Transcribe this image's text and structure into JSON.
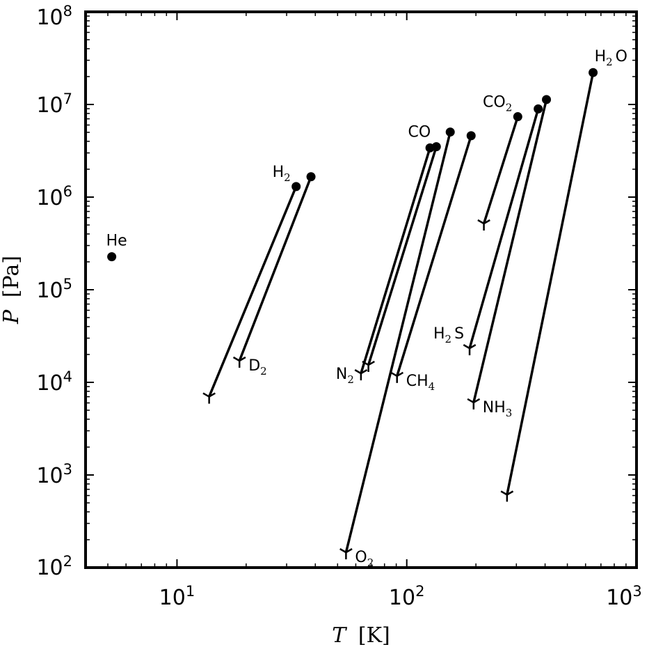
{
  "chart_data": {
    "type": "scatter",
    "xscale": "log",
    "yscale": "log",
    "xlim": [
      4,
      1000
    ],
    "ylim": [
      100,
      100000000
    ],
    "xlabel": {
      "symbol": "T",
      "unit": "[K]"
    },
    "ylabel": {
      "symbol": "P",
      "unit": "[Pa]"
    },
    "x_ticks": [
      {
        "value": 10,
        "base": "10",
        "exp": "1"
      },
      {
        "value": 100,
        "base": "10",
        "exp": "2"
      },
      {
        "value": 1000,
        "base": "10",
        "exp": "3"
      }
    ],
    "y_ticks": [
      {
        "value": 100,
        "base": "10",
        "exp": "2"
      },
      {
        "value": 1000,
        "base": "10",
        "exp": "3"
      },
      {
        "value": 10000,
        "base": "10",
        "exp": "4"
      },
      {
        "value": 100000,
        "base": "10",
        "exp": "5"
      },
      {
        "value": 1000000,
        "base": "10",
        "exp": "6"
      },
      {
        "value": 10000000,
        "base": "10",
        "exp": "7"
      },
      {
        "value": 100000000,
        "base": "10",
        "exp": "8"
      }
    ],
    "grid": false,
    "legend": "none",
    "marker_legend": {
      "critical_point": "filled circle",
      "triple_point": "tri-down marker"
    },
    "series": [
      {
        "label": "He",
        "label_at": "critical",
        "label_pos": "above",
        "critical": [
          5.2,
          227000
        ]
      },
      {
        "label": "H2",
        "label_at": "critical",
        "label_pos": "upper-left",
        "critical": [
          33.0,
          1300000
        ],
        "triple": [
          13.8,
          7000
        ]
      },
      {
        "label": "D2",
        "label_at": "triple",
        "label_pos": "right",
        "critical": [
          38.3,
          1660000
        ],
        "triple": [
          18.7,
          17100
        ]
      },
      {
        "label": "N2",
        "label_at": "triple",
        "label_pos": "left",
        "critical": [
          126.2,
          3400000
        ],
        "triple": [
          63.2,
          12500
        ]
      },
      {
        "label": "CO",
        "label_at": "critical",
        "label_pos": "upper-left",
        "critical": [
          134.5,
          3500000
        ],
        "triple": [
          68.1,
          15400
        ]
      },
      {
        "label": "O2",
        "label_at": "triple",
        "label_pos": "right",
        "critical": [
          154.6,
          5040000
        ],
        "triple": [
          54.4,
          146
        ]
      },
      {
        "label": "CH4",
        "label_at": "triple",
        "label_pos": "right",
        "critical": [
          190.6,
          4600000
        ],
        "triple": [
          90.7,
          11700
        ]
      },
      {
        "label": "CO2",
        "label_at": "critical",
        "label_pos": "upper-left",
        "critical": [
          304.2,
          7380000
        ],
        "triple": [
          216.6,
          518000
        ]
      },
      {
        "label": "H2S",
        "label_at": "triple",
        "label_pos": "upper-left",
        "critical": [
          373.3,
          8960000
        ],
        "triple": [
          187.7,
          23300
        ]
      },
      {
        "label": "NH3",
        "label_at": "triple",
        "label_pos": "right",
        "critical": [
          405.5,
          11300000
        ],
        "triple": [
          195.4,
          6060
        ]
      },
      {
        "label": "H2O",
        "label_at": "critical",
        "label_pos": "upper-right",
        "critical": [
          647.1,
          22100000
        ],
        "triple": [
          273.16,
          611.7
        ]
      }
    ],
    "label_parts": {
      "He": [
        "He",
        ""
      ],
      "H2": [
        "H",
        "2"
      ],
      "D2": [
        "D",
        "2"
      ],
      "N2": [
        "N",
        "2"
      ],
      "CO": [
        "CO",
        ""
      ],
      "O2": [
        "O",
        "2"
      ],
      "CH4": [
        "CH",
        "4"
      ],
      "CO2": [
        "CO",
        "2"
      ],
      "H2S": [
        "H",
        "2",
        "S"
      ],
      "NH3": [
        "NH",
        "3"
      ],
      "H2O": [
        "H",
        "2",
        "O"
      ]
    }
  }
}
